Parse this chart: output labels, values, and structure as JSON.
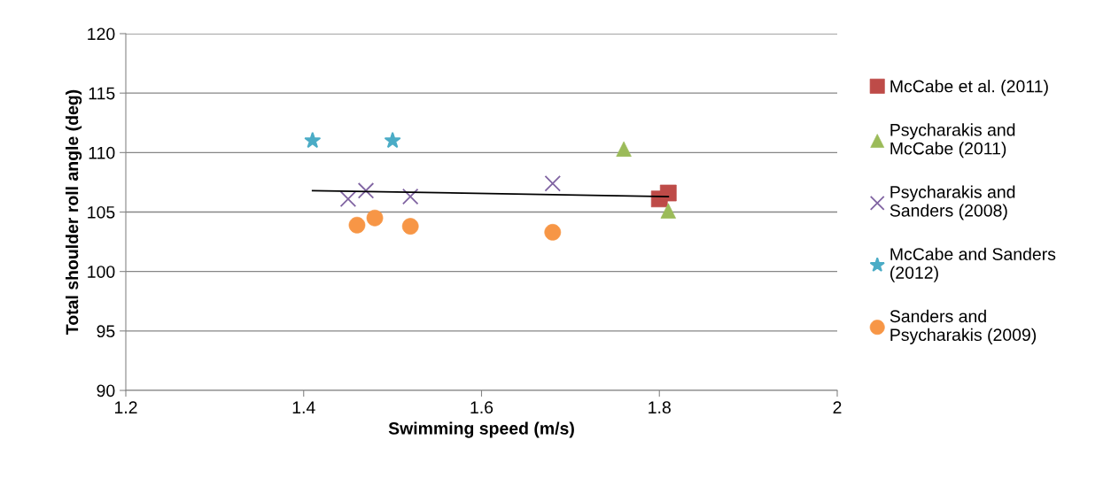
{
  "chart_data": {
    "type": "scatter",
    "xlabel": "Swimming speed (m/s)",
    "ylabel": "Total shoulder roll angle (deg)",
    "xlim": [
      1.2,
      2
    ],
    "xticks": [
      1.2,
      1.4,
      1.6,
      1.8,
      {
        "value": 2,
        "label": "2"
      }
    ],
    "ylim": [
      90,
      120
    ],
    "yticks": [
      90,
      95,
      100,
      105,
      110,
      115,
      120
    ],
    "grid": "y",
    "legend": "right",
    "series": [
      {
        "name": "McCabe et al. (2011)",
        "color": "#be4b48",
        "marker": "square",
        "x": [
          1.8,
          1.81
        ],
        "values": [
          106.1,
          106.6
        ]
      },
      {
        "name": "Psycharakis and McCabe (2011)",
        "color": "#9bbb59",
        "marker": "triangle",
        "x": [
          1.76,
          1.81
        ],
        "values": [
          110.3,
          105.1
        ]
      },
      {
        "name": "Psycharakis and Sanders (2008)",
        "color": "#8064a2",
        "marker": "cross",
        "x": [
          1.45,
          1.47,
          1.52,
          1.68
        ],
        "values": [
          106.1,
          106.8,
          106.3,
          107.4
        ]
      },
      {
        "name": "McCabe and Sanders (2012)",
        "color": "#4bacc6",
        "marker": "star",
        "x": [
          1.41,
          1.5
        ],
        "values": [
          111,
          111
        ]
      },
      {
        "name": "Sanders and Psycharakis (2009)",
        "color": "#f79646",
        "marker": "circle",
        "x": [
          1.46,
          1.48,
          1.52,
          1.68
        ],
        "values": [
          103.9,
          104.5,
          103.8,
          103.3
        ]
      },
      {
        "type": "line",
        "color": "#000000",
        "marker": "none",
        "x": [
          1.41,
          1.81
        ],
        "values": [
          106.8,
          106.3
        ]
      }
    ]
  }
}
